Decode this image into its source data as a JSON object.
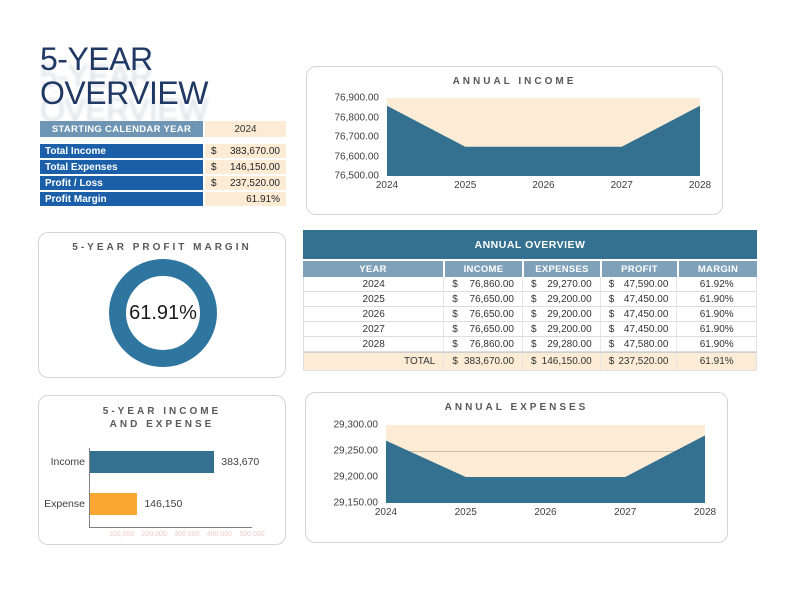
{
  "page": {
    "title_line1": "5-YEAR",
    "title_line2": "OVERVIEW"
  },
  "colors": {
    "title_navy": "#1F3864",
    "summary_header_blue": "#6E96B4",
    "summary_row_blue": "#1A5FA8",
    "input_cream": "#FCECD5",
    "table_title_blue": "#34708F",
    "table_header_blue": "#7FA2BA",
    "chart_blue": "#34708F",
    "donut_blue": "#2E75A0",
    "expense_orange": "#FBA832"
  },
  "summary_table": {
    "header": {
      "label": "STARTING CALENDAR YEAR",
      "value": "2024"
    },
    "rows": [
      {
        "label": "Total Income",
        "currency": "$",
        "value": "383,670.00"
      },
      {
        "label": "Total Expenses",
        "currency": "$",
        "value": "146,150.00"
      },
      {
        "label": "Profit / Loss",
        "currency": "$",
        "value": "237,520.00"
      },
      {
        "label": "Profit Margin",
        "currency": "",
        "value": "61.91%"
      }
    ]
  },
  "profit_margin_card": {
    "title": "5-YEAR PROFIT MARGIN",
    "value": "61.91%"
  },
  "income_expense_card": {
    "title_line1": "5-YEAR INCOME",
    "title_line2": "AND EXPENSE"
  },
  "overview_table": {
    "title": "ANNUAL OVERVIEW",
    "columns": [
      "YEAR",
      "INCOME",
      "EXPENSES",
      "PROFIT",
      "MARGIN"
    ],
    "currency_symbol": "$",
    "rows": [
      {
        "year": "2024",
        "income": "76,860.00",
        "expenses": "29,270.00",
        "profit": "47,590.00",
        "margin": "61.92%"
      },
      {
        "year": "2025",
        "income": "76,650.00",
        "expenses": "29,200.00",
        "profit": "47,450.00",
        "margin": "61.90%"
      },
      {
        "year": "2026",
        "income": "76,650.00",
        "expenses": "29,200.00",
        "profit": "47,450.00",
        "margin": "61.90%"
      },
      {
        "year": "2027",
        "income": "76,650.00",
        "expenses": "29,200.00",
        "profit": "47,450.00",
        "margin": "61.90%"
      },
      {
        "year": "2028",
        "income": "76,860.00",
        "expenses": "29,280.00",
        "profit": "47,580.00",
        "margin": "61.90%"
      }
    ],
    "total_row": {
      "label": "TOTAL",
      "income": "383,670.00",
      "expenses": "146,150.00",
      "profit": "237,520.00",
      "margin": "61.91%"
    }
  },
  "chart_data": [
    {
      "id": "annual_income",
      "type": "area",
      "title": "ANNUAL INCOME",
      "x": [
        "2024",
        "2025",
        "2026",
        "2027",
        "2028"
      ],
      "values": [
        76860,
        76650,
        76650,
        76650,
        76860
      ],
      "ylim": [
        76500,
        76900
      ],
      "yticks": [
        "76,900.00",
        "76,800.00",
        "76,700.00",
        "76,600.00",
        "76,500.00"
      ],
      "gridline_values": [],
      "area_color": "#34708F",
      "plot_bg": "#FCECD5",
      "legend": "none"
    },
    {
      "id": "annual_expenses",
      "type": "area",
      "title": "ANNUAL EXPENSES",
      "x": [
        "2024",
        "2025",
        "2026",
        "2027",
        "2028"
      ],
      "values": [
        29270,
        29200,
        29200,
        29200,
        29280
      ],
      "ylim": [
        29150,
        29300
      ],
      "yticks": [
        "29,300.00",
        "29,250.00",
        "29,200.00",
        "29,150.00"
      ],
      "gridline_values": [
        29250
      ],
      "area_color": "#34708F",
      "plot_bg": "#FCECD5",
      "legend": "none"
    },
    {
      "id": "five_year_income_expense",
      "type": "bar",
      "title": "5-YEAR INCOME AND EXPENSE",
      "categories": [
        "Income",
        "Expense"
      ],
      "values": [
        383670,
        146150
      ],
      "value_labels": [
        "383,670",
        "146,150"
      ],
      "bar_colors": [
        "#34708F",
        "#FBA832"
      ],
      "xlim": [
        0,
        500000
      ],
      "x_axis_labels": [
        "100,000",
        "200,000",
        "300,000",
        "400,000",
        "500,000"
      ]
    },
    {
      "id": "five_year_profit_margin",
      "type": "donut",
      "title": "5-YEAR PROFIT MARGIN",
      "value": 61.91,
      "label": "61.91%",
      "ring_color": "#2E75A0"
    }
  ]
}
